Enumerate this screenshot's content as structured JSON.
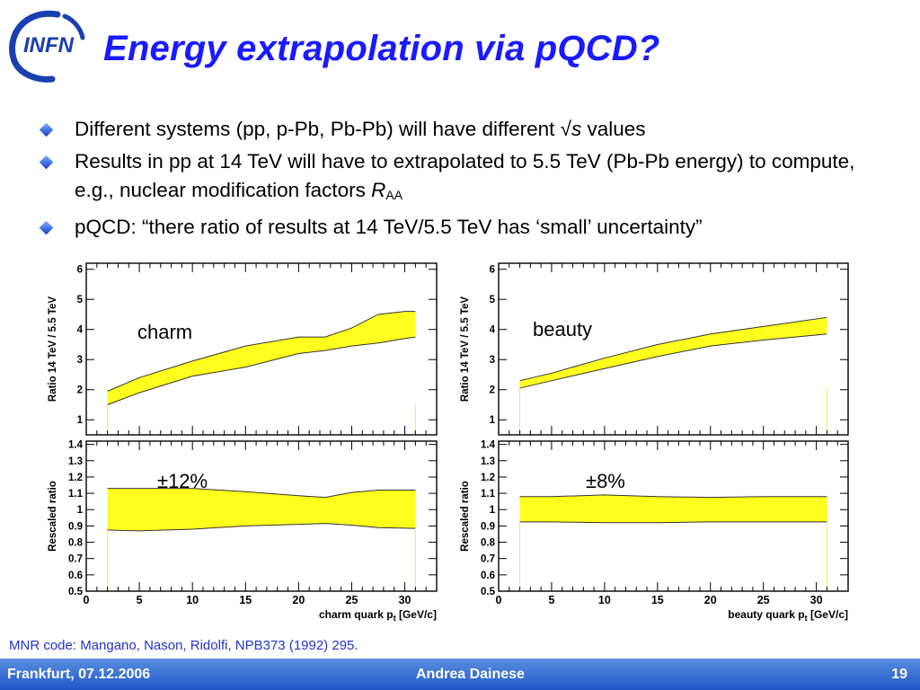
{
  "slide": {
    "title": "Energy extrapolation via pQCD?",
    "logo_text": "INFN",
    "bullets": [
      {
        "text": "Different systems (pp, p-Pb, Pb-Pb) will have different √",
        "italic": "s",
        "tail": " values"
      },
      {
        "text": "Results in pp at 14 TeV will have to extrapolated to 5.5 TeV (Pb-Pb energy) to compute, e.g., nuclear modification factors ",
        "italic": "R",
        "sub": "AA"
      },
      {
        "text": "pQCD: “there ratio of results at 14 TeV/5.5 TeV has ‘small’ uncertainty”"
      }
    ],
    "reference": "MNR code: Mangano, Nason, Ridolfi, NPB373 (1992) 295.",
    "footer": {
      "left": "Frankfurt, 07.12.2006",
      "center": "Andrea Dainese",
      "page": "19"
    },
    "colors": {
      "title": "#1a1aff",
      "band": "#ffff1e",
      "footer": "#2a63cf",
      "reference": "#2233cc"
    }
  },
  "chart_data": [
    {
      "type": "area",
      "panel": "charm-ratio",
      "ylabel": "Ratio  14 TeV / 5.5 TeV",
      "xlabel": "",
      "xlim": [
        0,
        33
      ],
      "ylim": [
        0.5,
        6.2
      ],
      "yticks": [
        1,
        2,
        3,
        4,
        5,
        6
      ],
      "xticks": [],
      "annotation": "charm",
      "x": [
        2,
        5,
        10,
        15,
        20,
        22.5,
        25,
        27.5,
        30,
        31
      ],
      "upper": [
        1.95,
        2.4,
        2.95,
        3.45,
        3.75,
        3.75,
        4.05,
        4.5,
        4.6,
        4.6
      ],
      "lower": [
        1.5,
        1.9,
        2.45,
        2.75,
        3.2,
        3.3,
        3.45,
        3.55,
        3.7,
        3.75
      ]
    },
    {
      "type": "area",
      "panel": "beauty-ratio",
      "ylabel": "Ratio  14 TeV / 5.5 TeV",
      "xlabel": "",
      "xlim": [
        0,
        33
      ],
      "ylim": [
        0.5,
        6.2
      ],
      "yticks": [
        1,
        2,
        3,
        4,
        5,
        6
      ],
      "xticks": [],
      "annotation": "beauty",
      "x": [
        2,
        5,
        10,
        15,
        20,
        25,
        31
      ],
      "upper": [
        2.3,
        2.55,
        3.05,
        3.5,
        3.85,
        4.1,
        4.4
      ],
      "lower": [
        2.05,
        2.3,
        2.7,
        3.1,
        3.45,
        3.65,
        3.85
      ]
    },
    {
      "type": "area",
      "panel": "charm-rescaled",
      "ylabel": "Rescaled ratio",
      "xlabel": "charm quark p",
      "xlabel_sub": "t",
      "xlabel_tail": " [GeV/c]",
      "xlim": [
        0,
        33
      ],
      "ylim": [
        0.5,
        1.42
      ],
      "yticks": [
        0.5,
        0.6,
        0.7,
        0.8,
        0.9,
        1,
        1.1,
        1.2,
        1.3,
        1.4
      ],
      "xticks": [
        0,
        5,
        10,
        15,
        20,
        25,
        30
      ],
      "annotation": "±12%",
      "x": [
        2,
        5,
        10,
        15,
        20,
        22.5,
        25,
        27.5,
        31
      ],
      "upper": [
        1.13,
        1.13,
        1.13,
        1.11,
        1.085,
        1.075,
        1.105,
        1.12,
        1.12
      ],
      "lower": [
        0.875,
        0.87,
        0.88,
        0.9,
        0.91,
        0.915,
        0.905,
        0.89,
        0.885
      ]
    },
    {
      "type": "area",
      "panel": "beauty-rescaled",
      "ylabel": "Rescaled ratio",
      "xlabel": "beauty quark p",
      "xlabel_sub": "t",
      "xlabel_tail": " [GeV/c]",
      "xlim": [
        0,
        33
      ],
      "ylim": [
        0.5,
        1.42
      ],
      "yticks": [
        0.5,
        0.6,
        0.7,
        0.8,
        0.9,
        1,
        1.1,
        1.2,
        1.3,
        1.4
      ],
      "xticks": [
        0,
        5,
        10,
        15,
        20,
        25,
        30
      ],
      "annotation": "±8%",
      "x": [
        2,
        5,
        10,
        15,
        20,
        25,
        31
      ],
      "upper": [
        1.08,
        1.08,
        1.09,
        1.08,
        1.075,
        1.08,
        1.08
      ],
      "lower": [
        0.925,
        0.925,
        0.92,
        0.92,
        0.925,
        0.925,
        0.925
      ]
    }
  ]
}
